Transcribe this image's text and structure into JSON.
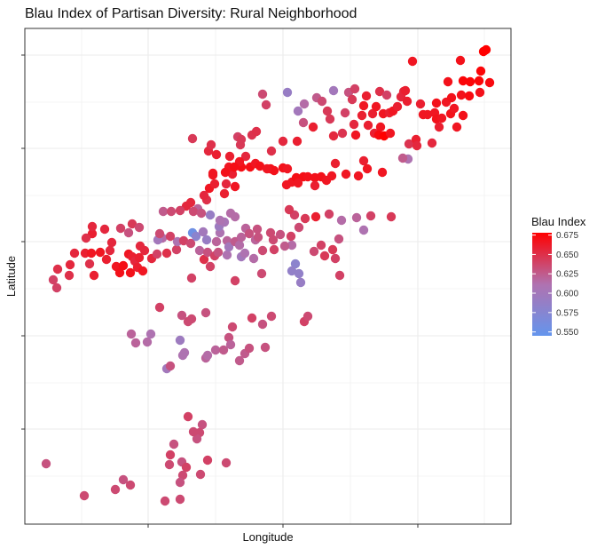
{
  "chart_data": {
    "type": "scatter",
    "title": "Blau Index of Partisan Diversity: Rural Neighborhood",
    "xlabel": "Longitude",
    "ylabel": "Latitude",
    "x_tick_labels_shown": false,
    "y_tick_labels_shown": false,
    "grid": true,
    "legend": {
      "title": "Blau Index",
      "placement": "right",
      "type": "continuous-colorbar",
      "ticks": [
        0.675,
        0.65,
        0.625,
        0.6,
        0.575,
        0.55
      ],
      "tick_labels": [
        "0.675",
        "0.650",
        "0.625",
        "0.600",
        "0.575",
        "0.550"
      ],
      "range": [
        0.545,
        0.678
      ],
      "colors": {
        "low": "#6495ed",
        "mid": "#b072b0",
        "high": "#ff0000"
      }
    },
    "colors": {
      "panel_border": "#333333",
      "grid": "#ebebeb",
      "background": "#ffffff"
    },
    "points": [
      [
        52,
        522,
        0.63
      ],
      [
        95,
        558,
        0.635
      ],
      [
        130,
        551,
        0.635
      ],
      [
        139,
        540,
        0.63
      ],
      [
        147,
        546,
        0.635
      ],
      [
        186,
        564,
        0.635
      ],
      [
        203,
        562,
        0.635
      ],
      [
        212,
        469,
        0.64
      ],
      [
        228,
        478,
        0.63
      ],
      [
        225,
        487,
        0.635
      ],
      [
        222,
        494,
        0.63
      ],
      [
        218,
        486,
        0.635
      ],
      [
        196,
        500,
        0.63
      ],
      [
        192,
        512,
        0.64
      ],
      [
        191,
        523,
        0.635
      ],
      [
        205,
        520,
        0.63
      ],
      [
        210,
        526,
        0.64
      ],
      [
        206,
        535,
        0.635
      ],
      [
        203,
        543,
        0.63
      ],
      [
        226,
        534,
        0.635
      ],
      [
        234,
        518,
        0.64
      ],
      [
        255,
        521,
        0.635
      ],
      [
        188,
        415,
        0.6
      ],
      [
        208,
        397,
        0.61
      ],
      [
        203,
        383,
        0.595
      ],
      [
        212,
        362,
        0.635
      ],
      [
        205,
        355,
        0.63
      ],
      [
        232,
        352,
        0.63
      ],
      [
        216,
        359,
        0.635
      ],
      [
        180,
        346,
        0.64
      ],
      [
        148,
        376,
        0.62
      ],
      [
        153,
        386,
        0.62
      ],
      [
        170,
        376,
        0.61
      ],
      [
        166,
        385,
        0.615
      ],
      [
        192,
        412,
        0.63
      ],
      [
        206,
        400,
        0.61
      ],
      [
        232,
        403,
        0.62
      ],
      [
        243,
        394,
        0.62
      ],
      [
        252,
        394,
        0.625
      ],
      [
        258,
        380,
        0.63
      ],
      [
        262,
        368,
        0.635
      ],
      [
        260,
        388,
        0.62
      ],
      [
        270,
        406,
        0.625
      ],
      [
        276,
        398,
        0.625
      ],
      [
        281,
        392,
        0.63
      ],
      [
        284,
        358,
        0.64
      ],
      [
        296,
        365,
        0.63
      ],
      [
        306,
        356,
        0.635
      ],
      [
        299,
        391,
        0.63
      ],
      [
        343,
        362,
        0.64
      ],
      [
        347,
        356,
        0.635
      ],
      [
        234,
        400,
        0.615
      ],
      [
        60,
        315,
        0.64
      ],
      [
        64,
        324,
        0.64
      ],
      [
        65,
        303,
        0.65
      ],
      [
        78,
        310,
        0.65
      ],
      [
        79,
        298,
        0.655
      ],
      [
        84,
        285,
        0.655
      ],
      [
        96,
        285,
        0.66
      ],
      [
        103,
        285,
        0.665
      ],
      [
        101,
        297,
        0.65
      ],
      [
        106,
        310,
        0.66
      ],
      [
        113,
        284,
        0.665
      ],
      [
        120,
        292,
        0.66
      ],
      [
        126,
        273,
        0.655
      ],
      [
        124,
        282,
        0.655
      ],
      [
        131,
        300,
        0.665
      ],
      [
        135,
        307,
        0.668
      ],
      [
        147,
        307,
        0.668
      ],
      [
        139,
        299,
        0.67
      ],
      [
        145,
        286,
        0.665
      ],
      [
        149,
        289,
        0.66
      ],
      [
        152,
        294,
        0.655
      ],
      [
        155,
        301,
        0.66
      ],
      [
        161,
        305,
        0.665
      ],
      [
        157,
        290,
        0.66
      ],
      [
        163,
        282,
        0.655
      ],
      [
        158,
        277,
        0.655
      ],
      [
        171,
        291,
        0.655
      ],
      [
        177,
        286,
        0.64
      ],
      [
        188,
        285,
        0.65
      ],
      [
        199,
        281,
        0.64
      ],
      [
        200,
        272,
        0.61
      ],
      [
        183,
        268,
        0.615
      ],
      [
        178,
        270,
        0.6
      ],
      [
        180,
        263,
        0.635
      ],
      [
        192,
        266,
        0.64
      ],
      [
        207,
        271,
        0.64
      ],
      [
        215,
        274,
        0.635
      ],
      [
        217,
        262,
        0.555
      ],
      [
        221,
        266,
        0.58
      ],
      [
        229,
        261,
        0.6
      ],
      [
        233,
        270,
        0.59
      ],
      [
        230,
        292,
        0.65
      ],
      [
        225,
        282,
        0.62
      ],
      [
        234,
        284,
        0.63
      ],
      [
        237,
        300,
        0.64
      ],
      [
        242,
        288,
        0.64
      ],
      [
        246,
        284,
        0.63
      ],
      [
        244,
        272,
        0.62
      ],
      [
        248,
        262,
        0.61
      ],
      [
        247,
        255,
        0.595
      ],
      [
        253,
        250,
        0.605
      ],
      [
        256,
        271,
        0.62
      ],
      [
        256,
        287,
        0.61
      ],
      [
        258,
        278,
        0.6
      ],
      [
        265,
        272,
        0.625
      ],
      [
        270,
        276,
        0.615
      ],
      [
        272,
        289,
        0.6
      ],
      [
        276,
        285,
        0.61
      ],
      [
        272,
        267,
        0.62
      ],
      [
        277,
        257,
        0.62
      ],
      [
        281,
        263,
        0.63
      ],
      [
        288,
        270,
        0.62
      ],
      [
        286,
        291,
        0.615
      ],
      [
        291,
        267,
        0.63
      ],
      [
        296,
        282,
        0.635
      ],
      [
        308,
        270,
        0.635
      ],
      [
        309,
        281,
        0.64
      ],
      [
        316,
        264,
        0.63
      ],
      [
        328,
        266,
        0.64
      ],
      [
        329,
        276,
        0.615
      ],
      [
        333,
        297,
        0.58
      ],
      [
        329,
        305,
        0.585
      ],
      [
        337,
        308,
        0.585
      ],
      [
        339,
        318,
        0.59
      ],
      [
        354,
        283,
        0.635
      ],
      [
        362,
        276,
        0.64
      ],
      [
        366,
        288,
        0.645
      ],
      [
        378,
        291,
        0.64
      ],
      [
        382,
        269,
        0.63
      ],
      [
        385,
        248,
        0.615
      ],
      [
        383,
        310,
        0.64
      ],
      [
        375,
        281,
        0.645
      ],
      [
        402,
        245,
        0.62
      ],
      [
        410,
        259,
        0.61
      ],
      [
        418,
        243,
        0.64
      ],
      [
        441,
        244,
        0.645
      ],
      [
        216,
        313,
        0.64
      ],
      [
        295,
        308,
        0.635
      ],
      [
        265,
        316,
        0.64
      ],
      [
        136,
        257,
        0.64
      ],
      [
        149,
        252,
        0.645
      ],
      [
        145,
        262,
        0.63
      ],
      [
        157,
        256,
        0.635
      ],
      [
        104,
        263,
        0.66
      ],
      [
        104,
        255,
        0.655
      ],
      [
        118,
        258,
        0.655
      ],
      [
        97,
        268,
        0.65
      ],
      [
        184,
        238,
        0.625
      ],
      [
        237,
        242,
        0.59
      ],
      [
        223,
        235,
        0.62
      ],
      [
        260,
        240,
        0.615
      ],
      [
        265,
        244,
        0.615
      ],
      [
        210,
        232,
        0.655
      ],
      [
        218,
        238,
        0.635
      ],
      [
        215,
        228,
        0.655
      ],
      [
        227,
        240,
        0.63
      ],
      [
        233,
        225,
        0.65
      ],
      [
        193,
        238,
        0.635
      ],
      [
        203,
        237,
        0.64
      ],
      [
        236,
        212,
        0.665
      ],
      [
        230,
        220,
        0.655
      ],
      [
        265,
        210,
        0.665
      ],
      [
        253,
        218,
        0.66
      ],
      [
        262,
        196,
        0.66
      ],
      [
        258,
        188,
        0.665
      ],
      [
        255,
        207,
        0.655
      ],
      [
        242,
        207,
        0.66
      ],
      [
        240,
        195,
        0.665
      ],
      [
        305,
        262,
        0.635
      ],
      [
        290,
        258,
        0.63
      ],
      [
        321,
        277,
        0.625
      ],
      [
        344,
        246,
        0.645
      ],
      [
        356,
        244,
        0.66
      ],
      [
        332,
        242,
        0.64
      ],
      [
        337,
        256,
        0.635
      ],
      [
        326,
        236,
        0.645
      ],
      [
        371,
        241,
        0.64
      ],
      [
        248,
        248,
        0.61
      ],
      [
        272,
        188,
        0.67
      ],
      [
        282,
        188,
        0.67
      ],
      [
        288,
        184,
        0.665
      ],
      [
        293,
        187,
        0.668
      ],
      [
        305,
        190,
        0.668
      ],
      [
        309,
        192,
        0.668
      ],
      [
        319,
        189,
        0.668
      ],
      [
        324,
        190,
        0.665
      ],
      [
        329,
        205,
        0.665
      ],
      [
        334,
        200,
        0.67
      ],
      [
        342,
        199,
        0.67
      ],
      [
        347,
        199,
        0.668
      ],
      [
        355,
        200,
        0.668
      ],
      [
        362,
        199,
        0.668
      ],
      [
        374,
        198,
        0.665
      ],
      [
        390,
        196,
        0.665
      ],
      [
        404,
        198,
        0.665
      ],
      [
        410,
        181,
        0.66
      ],
      [
        431,
        194,
        0.665
      ],
      [
        414,
        190,
        0.665
      ],
      [
        378,
        184,
        0.66
      ],
      [
        368,
        203,
        0.665
      ],
      [
        355,
        209,
        0.66
      ],
      [
        336,
        206,
        0.665
      ],
      [
        323,
        208,
        0.665
      ],
      [
        301,
        190,
        0.665
      ],
      [
        277,
        176,
        0.655
      ],
      [
        270,
        182,
        0.665
      ],
      [
        254,
        194,
        0.668
      ],
      [
        264,
        188,
        0.67
      ],
      [
        240,
        197,
        0.665
      ],
      [
        235,
        170,
        0.655
      ],
      [
        244,
        174,
        0.66
      ],
      [
        259,
        176,
        0.66
      ],
      [
        271,
        163,
        0.645
      ],
      [
        268,
        154,
        0.64
      ],
      [
        272,
        157,
        0.645
      ],
      [
        284,
        152,
        0.648
      ],
      [
        289,
        148,
        0.65
      ],
      [
        306,
        170,
        0.65
      ],
      [
        319,
        159,
        0.655
      ],
      [
        335,
        159,
        0.66
      ],
      [
        353,
        143,
        0.66
      ],
      [
        357,
        110,
        0.625
      ],
      [
        363,
        114,
        0.635
      ],
      [
        369,
        125,
        0.645
      ],
      [
        372,
        134,
        0.645
      ],
      [
        376,
        153,
        0.655
      ],
      [
        386,
        150,
        0.648
      ],
      [
        389,
        127,
        0.64
      ],
      [
        393,
        104,
        0.63
      ],
      [
        400,
        100,
        0.64
      ],
      [
        397,
        112,
        0.645
      ],
      [
        399,
        140,
        0.655
      ],
      [
        401,
        152,
        0.665
      ],
      [
        408,
        130,
        0.66
      ],
      [
        410,
        119,
        0.665
      ],
      [
        413,
        108,
        0.66
      ],
      [
        415,
        141,
        0.66
      ],
      [
        420,
        128,
        0.66
      ],
      [
        422,
        150,
        0.66
      ],
      [
        424,
        120,
        0.665
      ],
      [
        429,
        143,
        0.665
      ],
      [
        428,
        103,
        0.65
      ],
      [
        432,
        128,
        0.665
      ],
      [
        427,
        152,
        0.672
      ],
      [
        433,
        153,
        0.678
      ],
      [
        436,
        107,
        0.64
      ],
      [
        439,
        127,
        0.66
      ],
      [
        443,
        125,
        0.665
      ],
      [
        448,
        120,
        0.66
      ],
      [
        440,
        150,
        0.665
      ],
      [
        452,
        109,
        0.655
      ],
      [
        455,
        103,
        0.655
      ],
      [
        457,
        102,
        0.66
      ],
      [
        459,
        114,
        0.66
      ],
      [
        460,
        179,
        0.61
      ],
      [
        454,
        178,
        0.625
      ],
      [
        461,
        162,
        0.648
      ],
      [
        469,
        157,
        0.66
      ],
      [
        470,
        164,
        0.655
      ],
      [
        477,
        129,
        0.665
      ],
      [
        474,
        117,
        0.66
      ],
      [
        482,
        129,
        0.665
      ],
      [
        487,
        161,
        0.655
      ],
      [
        490,
        127,
        0.665
      ],
      [
        492,
        134,
        0.668
      ],
      [
        492,
        116,
        0.668
      ],
      [
        495,
        143,
        0.66
      ],
      [
        498,
        133,
        0.665
      ],
      [
        503,
        115,
        0.665
      ],
      [
        505,
        92,
        0.668
      ],
      [
        508,
        128,
        0.668
      ],
      [
        509,
        110,
        0.668
      ],
      [
        512,
        122,
        0.665
      ],
      [
        515,
        143,
        0.665
      ],
      [
        522,
        130,
        0.668
      ],
      [
        522,
        91,
        0.675
      ],
      [
        520,
        107,
        0.668
      ],
      [
        519,
        68,
        0.668
      ],
      [
        529,
        108,
        0.672
      ],
      [
        530,
        92,
        0.675
      ],
      [
        540,
        91,
        0.675
      ],
      [
        542,
        80,
        0.675
      ],
      [
        541,
        104,
        0.668
      ],
      [
        545,
        58,
        0.678
      ],
      [
        548,
        56,
        0.678
      ],
      [
        552,
        93,
        0.672
      ],
      [
        465,
        69,
        0.665
      ],
      [
        324,
        104,
        0.59
      ],
      [
        296,
        106,
        0.635
      ],
      [
        300,
        118,
        0.64
      ],
      [
        342,
        138,
        0.63
      ],
      [
        343,
        117,
        0.615
      ],
      [
        336,
        125,
        0.6
      ],
      [
        376,
        102,
        0.6
      ],
      [
        217,
        156,
        0.645
      ],
      [
        238,
        163,
        0.65
      ]
    ]
  }
}
